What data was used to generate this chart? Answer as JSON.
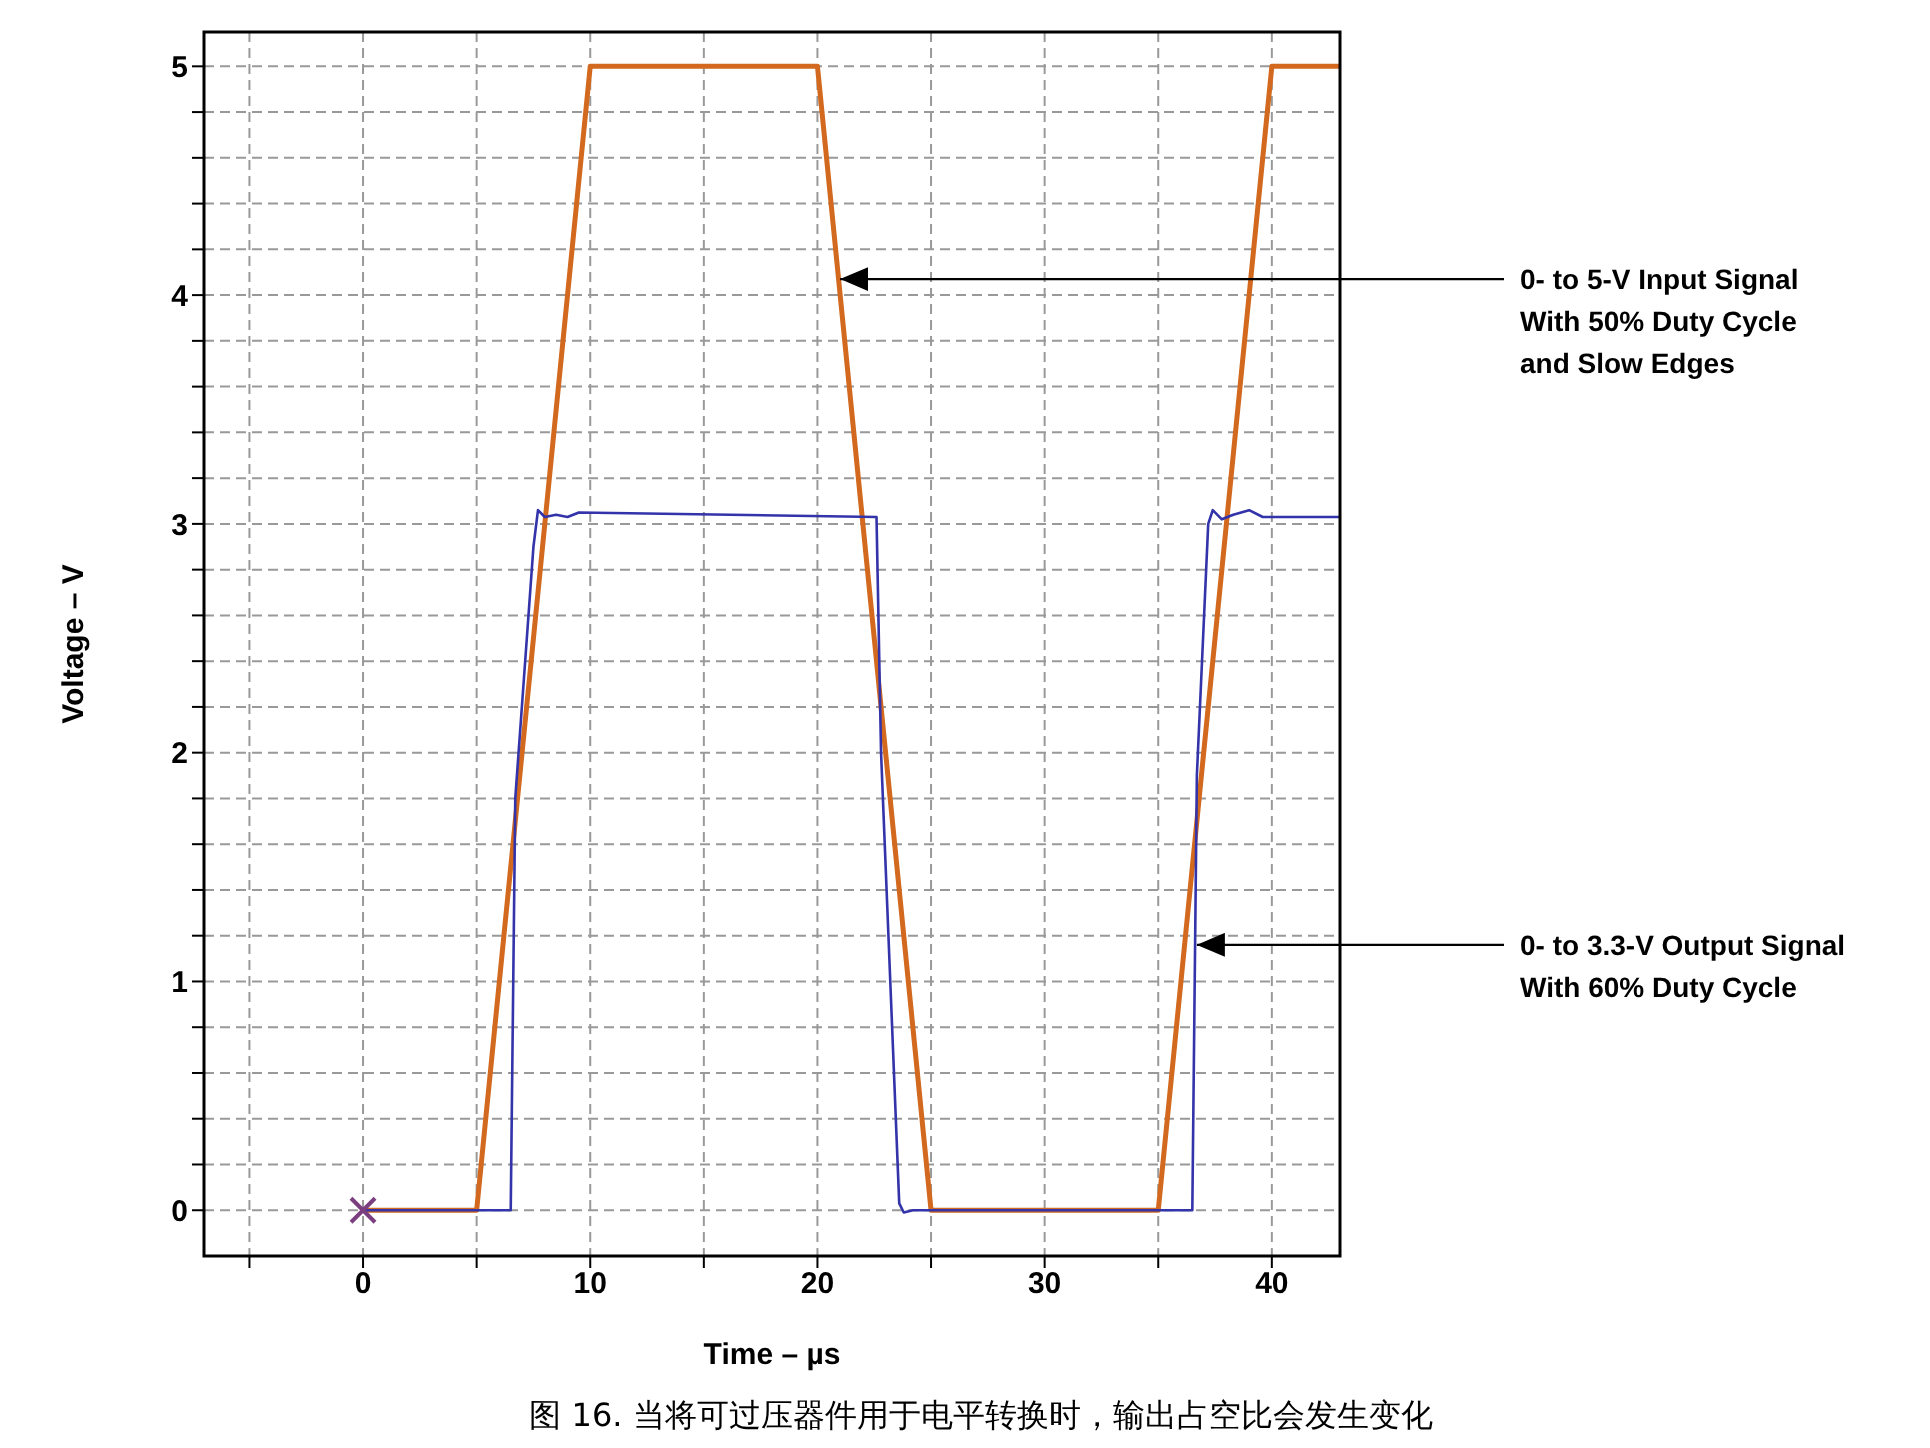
{
  "chart_data": {
    "type": "line",
    "xlabel": "Time – µs",
    "ylabel": "Voltage – V",
    "xlim": [
      -7,
      43
    ],
    "xticks": [
      {
        "value": -5,
        "label": null
      },
      0,
      {
        "value": 5,
        "label": null
      },
      10,
      {
        "value": 15,
        "label": null
      },
      20,
      {
        "value": 25,
        "label": null
      },
      30,
      {
        "value": 35,
        "label": null
      },
      40
    ],
    "ylim": [
      -0.2,
      5.15
    ],
    "yticks": [
      0,
      {
        "value": 0.2,
        "label": null
      },
      {
        "value": 0.4,
        "label": null
      },
      {
        "value": 0.6,
        "label": null
      },
      {
        "value": 0.8,
        "label": null
      },
      1,
      {
        "value": 1.2,
        "label": null
      },
      {
        "value": 1.4,
        "label": null
      },
      {
        "value": 1.6,
        "label": null
      },
      {
        "value": 1.8,
        "label": null
      },
      2,
      {
        "value": 2.2,
        "label": null
      },
      {
        "value": 2.4,
        "label": null
      },
      {
        "value": 2.6,
        "label": null
      },
      {
        "value": 2.8,
        "label": null
      },
      3,
      {
        "value": 3.2,
        "label": null
      },
      {
        "value": 3.4,
        "label": null
      },
      {
        "value": 3.6,
        "label": null
      },
      {
        "value": 3.8,
        "label": null
      },
      4,
      {
        "value": 4.2,
        "label": null
      },
      {
        "value": 4.4,
        "label": null
      },
      {
        "value": 4.6,
        "label": null
      },
      {
        "value": 4.8,
        "label": null
      },
      5
    ],
    "grid": true,
    "series": [
      {
        "color": "#d2691e",
        "x": [
          0,
          5,
          10,
          20,
          25,
          35,
          40,
          43
        ],
        "values": [
          0,
          0,
          5,
          5,
          0,
          0,
          5,
          5
        ]
      },
      {
        "color": "#3333aa",
        "x": [
          0,
          6.5,
          6.7,
          7.5,
          7.7,
          8.0,
          8.5,
          9.0,
          9.5,
          22.6,
          22.8,
          23.6,
          23.8,
          24.2,
          36.5,
          36.7,
          37.2,
          37.4,
          37.8,
          38.3,
          39,
          39.6,
          43
        ],
        "values": [
          0,
          0,
          1.8,
          2.9,
          3.06,
          3.03,
          3.04,
          3.03,
          3.05,
          3.03,
          2.0,
          0.03,
          -0.01,
          0,
          0,
          1.9,
          3.0,
          3.06,
          3.02,
          3.04,
          3.06,
          3.03,
          3.03
        ]
      },
      {
        "type": "scatter",
        "color": "#7b3f7f",
        "marker": "cross",
        "x": [
          0
        ],
        "values": [
          0
        ]
      }
    ],
    "annotations": [
      {
        "text": "0- to 5-V Input Signal\nWith 50% Duty Cycle\nand Slow Edges",
        "x": 21,
        "y": 4.07
      },
      {
        "text": "0- to 3.3-V Output Signal\nWith 60% Duty Cycle",
        "x": 36.7,
        "y": 1.16
      },
      "图 16. 当将可过压器件用于电平转换时，输出占空比会发生变化"
    ]
  }
}
